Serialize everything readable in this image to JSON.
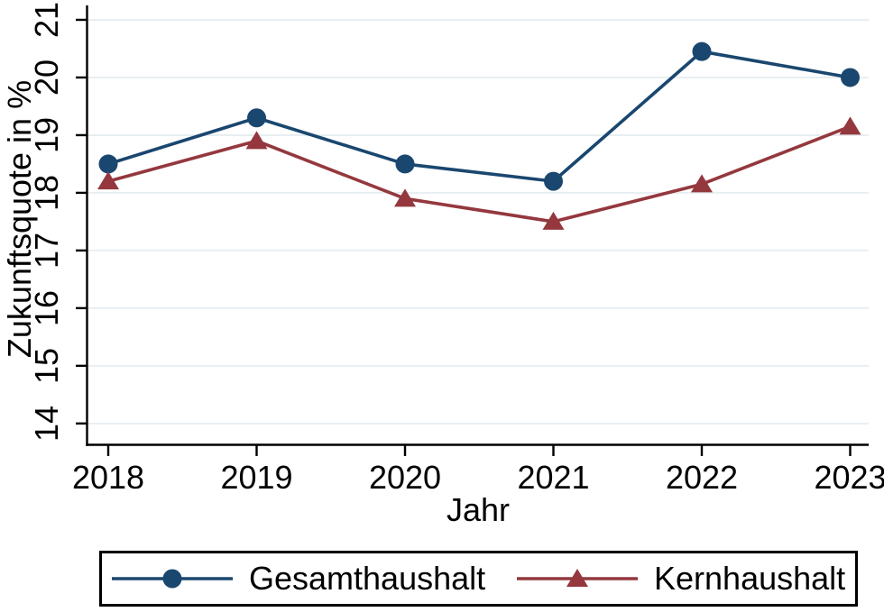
{
  "chart_data": {
    "type": "line",
    "title": "",
    "xlabel": "Jahr",
    "ylabel": "Zukunftsquote in %",
    "x": [
      2018,
      2019,
      2020,
      2021,
      2022,
      2023
    ],
    "series": [
      {
        "name": "Gesamthaushalt",
        "marker": "circle",
        "color": "#1A476F",
        "values": [
          18.5,
          19.3,
          18.5,
          18.2,
          20.45,
          20.0
        ]
      },
      {
        "name": "Kernhaushalt",
        "marker": "triangle",
        "color": "#94383E",
        "values": [
          18.2,
          18.9,
          17.9,
          17.5,
          18.15,
          19.15
        ]
      }
    ],
    "yticks": [
      14,
      15,
      16,
      17,
      18,
      19,
      20,
      21
    ],
    "ylim": [
      13.63,
      21.25
    ],
    "grid": true,
    "grid_color": "#E8EEF2",
    "axis_color": "#000000",
    "background_color": "#FFFFFF",
    "legend_position": "bottom"
  }
}
